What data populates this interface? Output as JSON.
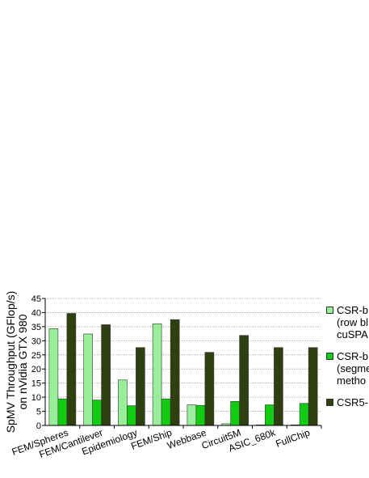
{
  "chart_data": {
    "type": "bar",
    "ylabel": "SpMV Throughput (GFlop/s)\non nVidia GTX 980",
    "ylim": [
      0,
      45
    ],
    "yticks": [
      0,
      5,
      10,
      15,
      20,
      25,
      30,
      35,
      40,
      45
    ],
    "grid": true,
    "legend_position": "right",
    "categories": [
      "FEM/Spheres",
      "FEM/Cantilever",
      "Epidemiology",
      "FEM/Ship",
      "Webbase",
      "Circuit5M",
      "ASIC_680k",
      "FullChip"
    ],
    "series": [
      {
        "name": "CSR-b (row bl cuSPA",
        "legend_lines": [
          "CSR-b",
          "(row bl",
          "cuSPA"
        ],
        "color": "#99ee99",
        "values": [
          34.3,
          32.4,
          16.1,
          36.0,
          7.3,
          0.6,
          0.2,
          0.2
        ]
      },
      {
        "name": "CSR-b (segme metho",
        "legend_lines": [
          "CSR-b",
          "(segme",
          "metho"
        ],
        "color": "#11cc11",
        "values": [
          9.4,
          9.0,
          7.0,
          9.4,
          7.1,
          8.5,
          7.3,
          7.8
        ]
      },
      {
        "name": "CSR5-",
        "legend_lines": [
          "CSR5-"
        ],
        "color": "#2e4010",
        "values": [
          39.7,
          35.7,
          27.6,
          37.5,
          25.9,
          31.9,
          27.6,
          27.6
        ]
      }
    ]
  }
}
